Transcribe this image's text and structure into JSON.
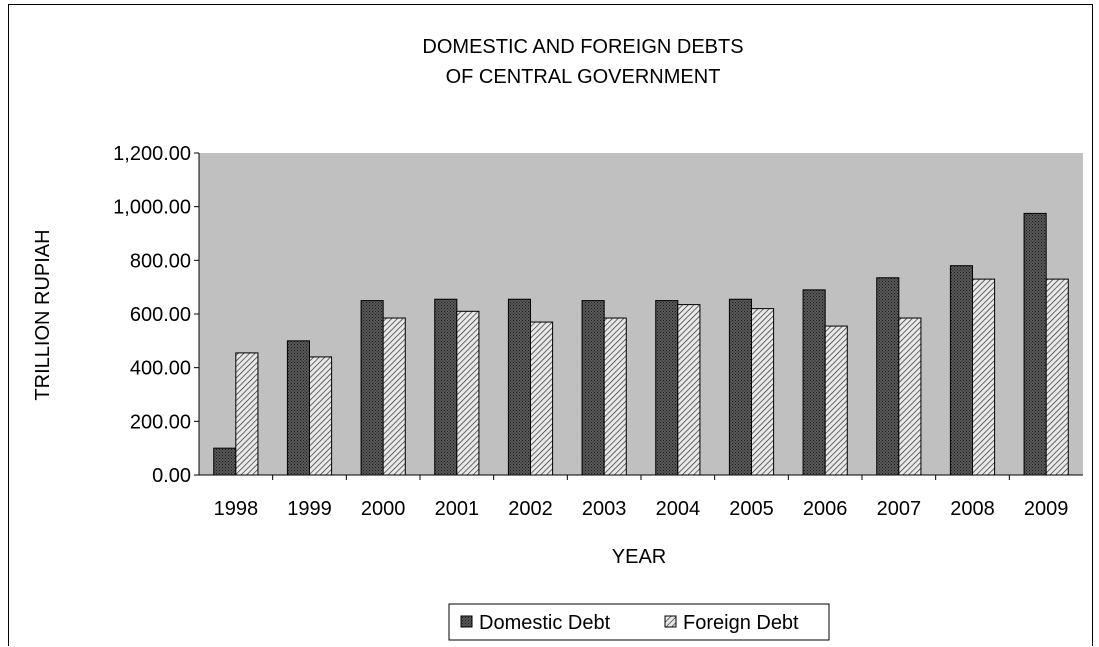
{
  "chart_data": {
    "type": "bar",
    "title_lines": [
      "DOMESTIC AND FOREIGN DEBTS",
      "OF CENTRAL GOVERNMENT"
    ],
    "xlabel": "YEAR",
    "ylabel": "TRILLION RUPIAH",
    "ylim": [
      0,
      1200
    ],
    "y_ticks": [
      "0.00",
      "200.00",
      "400.00",
      "600.00",
      "800.00",
      "1,000.00",
      "1,200.00"
    ],
    "categories": [
      "1998",
      "1999",
      "2000",
      "2001",
      "2002",
      "2003",
      "2004",
      "2005",
      "2006",
      "2007",
      "2008",
      "2009"
    ],
    "series": [
      {
        "name": "Domestic Debt",
        "values": [
          100,
          500,
          650,
          655,
          655,
          650,
          650,
          655,
          690,
          735,
          780,
          975
        ],
        "pattern": "dense-dots"
      },
      {
        "name": "Foreign Debt",
        "values": [
          455,
          440,
          585,
          610,
          570,
          585,
          635,
          620,
          555,
          585,
          730,
          730
        ],
        "pattern": "diagonal-hatch"
      }
    ],
    "grid": false,
    "legend": "bottom-center",
    "plot_background": "#c0c0c0"
  }
}
